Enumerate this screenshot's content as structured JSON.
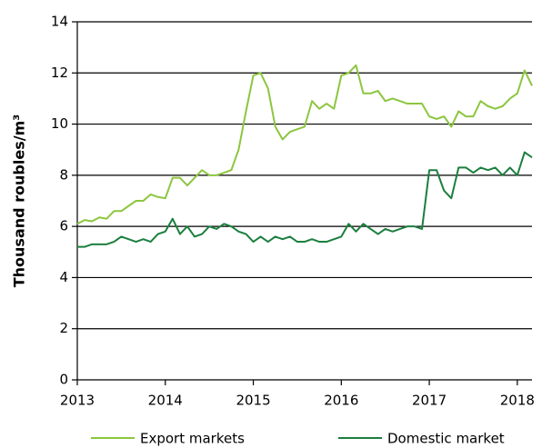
{
  "chart_data": {
    "type": "line",
    "y_label": "Thousand roubles/m³",
    "x": [
      2013,
      2013.083,
      2013.167,
      2013.25,
      2013.333,
      2013.417,
      2013.5,
      2013.583,
      2013.667,
      2013.75,
      2013.833,
      2013.917,
      2014,
      2014.083,
      2014.167,
      2014.25,
      2014.333,
      2014.417,
      2014.5,
      2014.583,
      2014.667,
      2014.75,
      2014.833,
      2014.917,
      2015,
      2015.083,
      2015.167,
      2015.25,
      2015.333,
      2015.417,
      2015.5,
      2015.583,
      2015.667,
      2015.75,
      2015.833,
      2015.917,
      2016,
      2016.083,
      2016.167,
      2016.25,
      2016.333,
      2016.417,
      2016.5,
      2016.583,
      2016.667,
      2016.75,
      2016.833,
      2016.917,
      2017,
      2017.083,
      2017.167,
      2017.25,
      2017.333,
      2017.417,
      2017.5,
      2017.583,
      2017.667,
      2017.75,
      2017.833,
      2017.917,
      2018,
      2018.083,
      2018.167
    ],
    "series": [
      {
        "name": "Export markets",
        "color": "#8cc63f",
        "values": [
          6.1,
          6.25,
          6.2,
          6.35,
          6.3,
          6.6,
          6.6,
          6.8,
          7.0,
          7.0,
          7.25,
          7.15,
          7.1,
          7.9,
          7.9,
          7.6,
          7.9,
          8.2,
          8.0,
          8.0,
          8.1,
          8.2,
          9.0,
          10.5,
          11.9,
          12.0,
          11.4,
          9.9,
          9.4,
          9.7,
          9.8,
          9.9,
          10.9,
          10.6,
          10.8,
          10.6,
          11.9,
          12.0,
          12.3,
          11.2,
          11.2,
          11.3,
          10.9,
          11.0,
          10.9,
          10.8,
          10.8,
          10.8,
          10.3,
          10.2,
          10.3,
          9.9,
          10.5,
          10.3,
          10.3,
          10.9,
          10.7,
          10.6,
          10.7,
          11.0,
          11.2,
          12.1,
          11.5
        ]
      },
      {
        "name": "Domestic market",
        "color": "#1b7f3e",
        "values": [
          5.2,
          5.2,
          5.3,
          5.3,
          5.3,
          5.4,
          5.6,
          5.5,
          5.4,
          5.5,
          5.4,
          5.7,
          5.8,
          6.3,
          5.7,
          6.0,
          5.6,
          5.7,
          6.0,
          5.9,
          6.1,
          6.0,
          5.8,
          5.7,
          5.4,
          5.6,
          5.4,
          5.6,
          5.5,
          5.6,
          5.4,
          5.4,
          5.5,
          5.4,
          5.4,
          5.5,
          5.6,
          6.1,
          5.8,
          6.1,
          5.9,
          5.7,
          5.9,
          5.8,
          5.9,
          6.0,
          6.0,
          5.9,
          8.2,
          8.2,
          7.4,
          7.1,
          8.3,
          8.3,
          8.1,
          8.3,
          8.2,
          8.3,
          8.0,
          8.3,
          8.0,
          8.9,
          8.7
        ]
      }
    ],
    "xlim": [
      2013,
      2018.167
    ],
    "xticks": [
      2013,
      2014,
      2015,
      2016,
      2017,
      2018
    ],
    "ylim": [
      0,
      14
    ],
    "yticks": [
      0,
      2,
      4,
      6,
      8,
      10,
      12,
      14
    ],
    "grid": true,
    "legend": "bottom"
  }
}
